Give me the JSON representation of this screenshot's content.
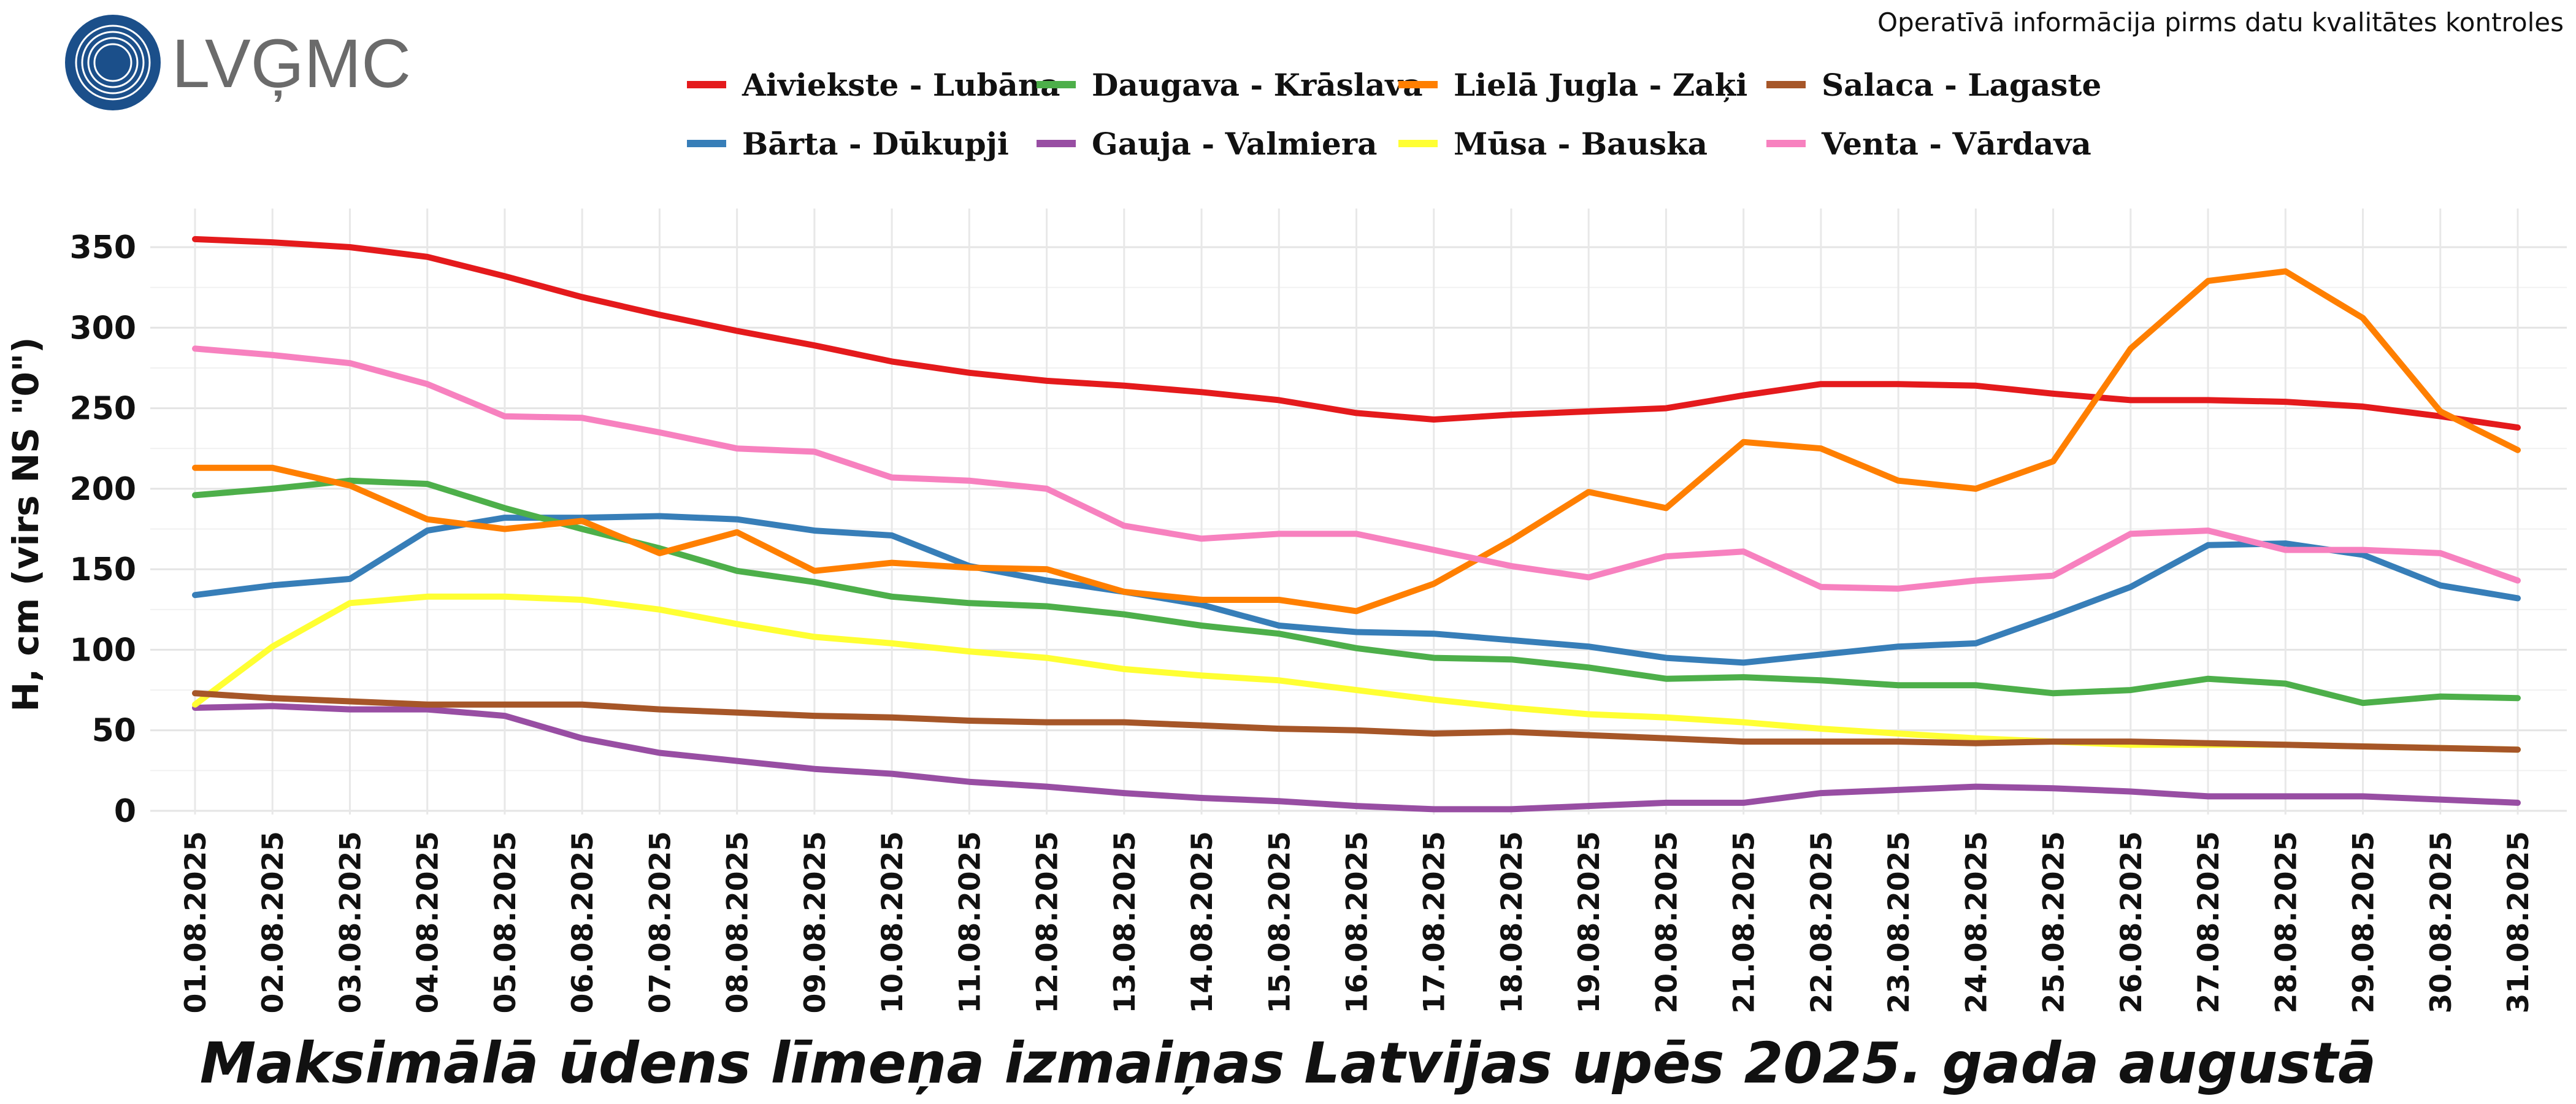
{
  "header": {
    "logo_text": "LVĢMC",
    "notice": "Operatīvā informācija pirms datu kvalitātes kontroles"
  },
  "chart_data": {
    "type": "line",
    "title": "Maksimālā ūdens līmeņa izmaiņas Latvijas upēs 2025. gada augustā",
    "xlabel": "",
    "ylabel": "H, cm (virs NS \"0\")",
    "ylim": [
      0,
      370
    ],
    "yticks": [
      0,
      50,
      100,
      150,
      200,
      250,
      300,
      350
    ],
    "grid": true,
    "legend_position": "top-center",
    "categories": [
      "01.08.2025",
      "02.08.2025",
      "03.08.2025",
      "04.08.2025",
      "05.08.2025",
      "06.08.2025",
      "07.08.2025",
      "08.08.2025",
      "09.08.2025",
      "10.08.2025",
      "11.08.2025",
      "12.08.2025",
      "13.08.2025",
      "14.08.2025",
      "15.08.2025",
      "16.08.2025",
      "17.08.2025",
      "18.08.2025",
      "19.08.2025",
      "20.08.2025",
      "21.08.2025",
      "22.08.2025",
      "23.08.2025",
      "24.08.2025",
      "25.08.2025",
      "26.08.2025",
      "27.08.2025",
      "28.08.2025",
      "29.08.2025",
      "30.08.2025",
      "31.08.2025"
    ],
    "series": [
      {
        "name": "Aiviekste - Lubāna",
        "color": "#e41a1c",
        "values": [
          355,
          353,
          350,
          344,
          332,
          319,
          308,
          298,
          289,
          279,
          272,
          267,
          264,
          260,
          255,
          247,
          243,
          246,
          248,
          250,
          258,
          265,
          265,
          264,
          259,
          255,
          255,
          254,
          251,
          245,
          238
        ]
      },
      {
        "name": "Bārta - Dūkupji",
        "color": "#377eb8",
        "values": [
          134,
          140,
          144,
          174,
          182,
          182,
          183,
          181,
          174,
          171,
          152,
          143,
          136,
          128,
          115,
          111,
          110,
          106,
          102,
          95,
          92,
          97,
          102,
          104,
          121,
          139,
          165,
          166,
          159,
          140,
          132
        ]
      },
      {
        "name": "Daugava - Krāslava",
        "color": "#4daf4a",
        "values": [
          196,
          200,
          205,
          203,
          188,
          175,
          163,
          149,
          142,
          133,
          129,
          127,
          122,
          115,
          110,
          101,
          95,
          94,
          89,
          82,
          83,
          81,
          78,
          78,
          73,
          75,
          82,
          79,
          67,
          71,
          70
        ]
      },
      {
        "name": "Gauja - Valmiera",
        "color": "#984ea3",
        "values": [
          64,
          65,
          63,
          63,
          59,
          45,
          36,
          31,
          26,
          23,
          18,
          15,
          11,
          8,
          6,
          3,
          1,
          1,
          3,
          5,
          5,
          11,
          13,
          15,
          14,
          12,
          9,
          9,
          9,
          7,
          5
        ]
      },
      {
        "name": "Lielā Jugla - Zaķi",
        "color": "#ff7f00",
        "values": [
          213,
          213,
          202,
          181,
          175,
          180,
          160,
          173,
          149,
          154,
          151,
          150,
          136,
          131,
          131,
          124,
          141,
          168,
          198,
          188,
          229,
          225,
          205,
          200,
          217,
          287,
          329,
          335,
          306,
          248,
          224
        ]
      },
      {
        "name": "Mūsa - Bauska",
        "color": "#ffff33",
        "values": [
          66,
          102,
          129,
          133,
          133,
          131,
          125,
          116,
          108,
          104,
          99,
          95,
          88,
          84,
          81,
          75,
          69,
          64,
          60,
          58,
          55,
          51,
          48,
          45,
          43,
          41,
          41,
          41,
          40,
          39,
          38
        ]
      },
      {
        "name": "Salaca - Lagaste",
        "color": "#a65628",
        "values": [
          73,
          70,
          68,
          66,
          66,
          66,
          63,
          61,
          59,
          58,
          56,
          55,
          55,
          53,
          51,
          50,
          48,
          49,
          47,
          45,
          43,
          43,
          43,
          42,
          43,
          43,
          42,
          41,
          40,
          39,
          38
        ]
      },
      {
        "name": "Venta - Vārdava",
        "color": "#f781bf",
        "values": [
          287,
          283,
          278,
          265,
          245,
          244,
          235,
          225,
          223,
          207,
          205,
          200,
          177,
          169,
          172,
          172,
          162,
          152,
          145,
          158,
          161,
          139,
          138,
          143,
          146,
          172,
          174,
          162,
          162,
          160,
          143
        ]
      }
    ]
  }
}
